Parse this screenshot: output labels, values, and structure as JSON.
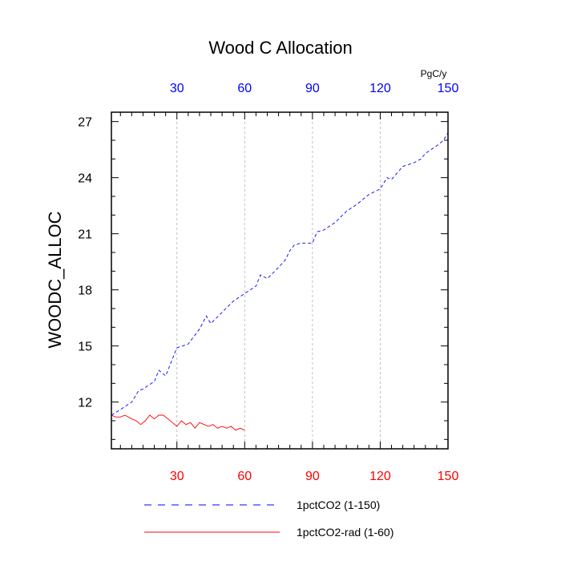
{
  "chart_data": {
    "type": "line",
    "title": "Wood C Allocation",
    "xlabel": "",
    "ylabel": "WOODC_ALLOC",
    "top_axis_units": "PgC/y",
    "xlim": [
      1,
      150
    ],
    "ylim": [
      9.5,
      27.5
    ],
    "grid": "vertical dashed at x ticks",
    "x_ticks": [
      30,
      60,
      90,
      120,
      150
    ],
    "y_ticks": [
      12,
      15,
      18,
      21,
      24,
      27
    ],
    "colors": {
      "top_axis_labels": "#0000ff",
      "bottom_axis_labels": "#ff0000",
      "grid": "#b0b0b0",
      "axis": "#000000"
    },
    "series": [
      {
        "name": "1pctCO2 (1-150)",
        "color": "#0000ff",
        "style": "dashed",
        "x": [
          1,
          5,
          10,
          13,
          15,
          20,
          22,
          24,
          25,
          27,
          30,
          35,
          40,
          43,
          45,
          50,
          55,
          60,
          65,
          67,
          70,
          75,
          78,
          80,
          82,
          85,
          90,
          92,
          95,
          100,
          105,
          110,
          115,
          120,
          123,
          125,
          130,
          135,
          138,
          140,
          145,
          148,
          150
        ],
        "y": [
          11.3,
          11.6,
          12.0,
          12.6,
          12.7,
          13.1,
          13.7,
          13.5,
          13.4,
          14.0,
          14.9,
          15.1,
          15.9,
          16.6,
          16.2,
          16.8,
          17.4,
          17.8,
          18.2,
          18.8,
          18.6,
          19.2,
          19.6,
          20.1,
          20.4,
          20.5,
          20.5,
          21.1,
          21.2,
          21.6,
          22.2,
          22.6,
          23.1,
          23.4,
          24.0,
          23.9,
          24.6,
          24.8,
          25.0,
          25.3,
          25.7,
          26.0,
          26.4
        ]
      },
      {
        "name": "1pctCO2-rad (1-60)",
        "color": "#ff0000",
        "style": "solid",
        "x": [
          1,
          3,
          5,
          7,
          10,
          12,
          14,
          16,
          18,
          20,
          22,
          24,
          26,
          28,
          30,
          32,
          34,
          36,
          38,
          40,
          42,
          44,
          46,
          48,
          50,
          52,
          54,
          56,
          58,
          60
        ],
        "y": [
          11.3,
          11.2,
          11.2,
          11.3,
          11.1,
          11.0,
          10.8,
          11.0,
          11.3,
          11.1,
          11.3,
          11.3,
          11.1,
          10.9,
          10.7,
          11.0,
          10.8,
          10.9,
          10.6,
          10.9,
          10.8,
          10.7,
          10.8,
          10.6,
          10.7,
          10.6,
          10.7,
          10.5,
          10.6,
          10.5
        ]
      }
    ]
  }
}
